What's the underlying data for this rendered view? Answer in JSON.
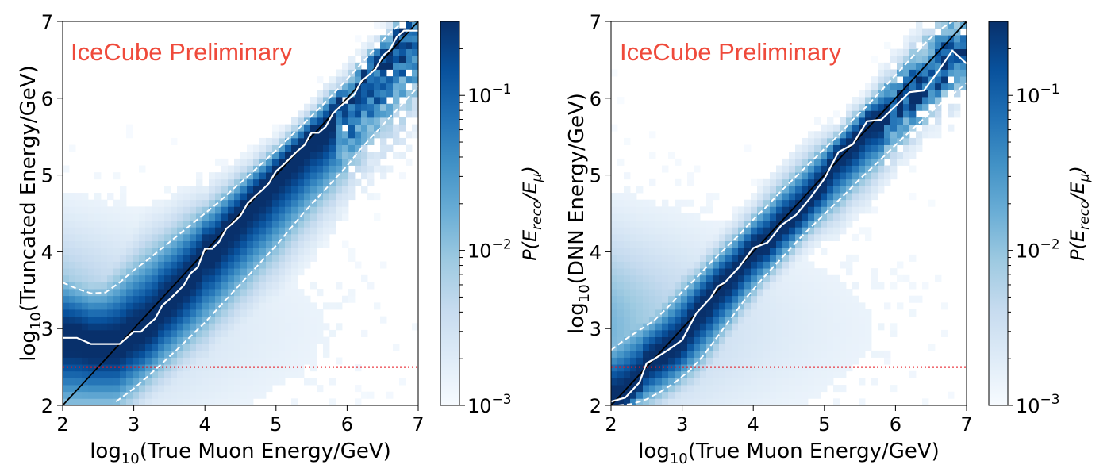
{
  "chart_data": [
    {
      "type": "heatmap",
      "title": "",
      "watermark": "IceCube Preliminary",
      "xlabel": "log10(True Muon Energy/GeV)",
      "ylabel": "log10(Truncated Energy/GeV)",
      "xlabel_parts": {
        "pre": "log",
        "sub": "10",
        "post": "(True Muon Energy/GeV)"
      },
      "ylabel_parts": {
        "pre": "log",
        "sub": "10",
        "post": "(Truncated Energy/GeV)"
      },
      "xlim": [
        2,
        7
      ],
      "ylim": [
        2,
        7
      ],
      "xticks": [
        "2",
        "3",
        "4",
        "5",
        "6",
        "7"
      ],
      "yticks": [
        "2",
        "3",
        "4",
        "5",
        "6",
        "7"
      ],
      "colorbar": {
        "label": "P(E_reco/E_mu)",
        "scale": "log",
        "range": [
          0.001,
          0.3
        ],
        "ticks": [
          {
            "base": "10",
            "exp": "−3",
            "value": 0.001
          },
          {
            "base": "10",
            "exp": "−2",
            "value": 0.01
          },
          {
            "base": "10",
            "exp": "−1",
            "value": 0.1
          }
        ],
        "colormap": "Blues"
      },
      "reference_lines": [
        {
          "name": "diagonal y=x",
          "color": "#000000",
          "points": [
            [
              2,
              2
            ],
            [
              7,
              7
            ]
          ]
        },
        {
          "name": "threshold",
          "style": "dotted",
          "color": "#e8141e",
          "y": 2.5
        }
      ],
      "median": {
        "x": [
          2.0,
          2.2,
          2.4,
          2.6,
          2.8,
          3.0,
          3.1,
          3.2,
          3.3,
          3.4,
          3.5,
          3.6,
          3.7,
          3.8,
          3.9,
          4.0,
          4.1,
          4.2,
          4.3,
          4.4,
          4.5,
          4.6,
          4.7,
          4.8,
          4.9,
          5.0,
          5.1,
          5.2,
          5.3,
          5.4,
          5.5,
          5.6,
          5.7,
          5.8,
          5.9,
          6.0,
          6.1,
          6.2,
          6.3,
          6.4,
          6.5,
          6.6,
          6.7,
          6.8,
          7.0
        ],
        "y": [
          2.88,
          2.88,
          2.8,
          2.8,
          2.8,
          2.96,
          2.96,
          3.05,
          3.13,
          3.3,
          3.38,
          3.47,
          3.56,
          3.72,
          3.8,
          4.04,
          4.04,
          4.13,
          4.3,
          4.38,
          4.47,
          4.63,
          4.72,
          4.8,
          4.89,
          5.05,
          5.13,
          5.22,
          5.31,
          5.39,
          5.55,
          5.55,
          5.63,
          5.8,
          5.89,
          5.97,
          6.05,
          6.22,
          6.3,
          6.38,
          6.55,
          6.63,
          6.8,
          6.88,
          6.88
        ]
      },
      "upper_band": {
        "x": [
          2.0,
          2.2,
          2.4,
          2.6,
          2.8,
          3.0,
          3.2,
          3.4,
          3.6,
          3.8,
          4.0,
          4.2,
          4.4,
          4.6,
          4.8,
          5.0,
          5.2,
          5.4,
          5.6,
          5.8,
          6.0,
          6.2,
          6.4,
          6.6,
          6.8,
          7.0
        ],
        "y": [
          3.6,
          3.52,
          3.46,
          3.47,
          3.6,
          3.76,
          3.9,
          4.05,
          4.2,
          4.35,
          4.5,
          4.65,
          4.82,
          4.98,
          5.15,
          5.32,
          5.5,
          5.68,
          5.86,
          6.05,
          6.25,
          6.45,
          6.65,
          6.85,
          7.0,
          7.0
        ]
      },
      "lower_band": {
        "x": [
          2.75,
          2.9,
          3.0,
          3.2,
          3.4,
          3.6,
          3.8,
          4.0,
          4.2,
          4.4,
          4.6,
          4.8,
          5.0,
          5.2,
          5.4,
          5.6,
          5.8,
          6.0,
          6.2,
          6.4,
          6.6,
          6.8,
          7.0
        ],
        "y": [
          2.05,
          2.15,
          2.22,
          2.38,
          2.55,
          2.72,
          2.9,
          3.08,
          3.28,
          3.48,
          3.68,
          3.88,
          4.08,
          4.3,
          4.52,
          4.72,
          4.92,
          5.12,
          5.35,
          5.55,
          5.75,
          5.95,
          6.15
        ]
      }
    },
    {
      "type": "heatmap",
      "title": "",
      "watermark": "IceCube Preliminary",
      "xlabel": "log10(True Muon Energy/GeV)",
      "ylabel": "log10(DNN Energy/GeV)",
      "xlabel_parts": {
        "pre": "log",
        "sub": "10",
        "post": "(True Muon Energy/GeV)"
      },
      "ylabel_parts": {
        "pre": "log",
        "sub": "10",
        "post": "(DNN Energy/GeV)"
      },
      "xlim": [
        2,
        7
      ],
      "ylim": [
        2,
        7
      ],
      "xticks": [
        "2",
        "3",
        "4",
        "5",
        "6",
        "7"
      ],
      "yticks": [
        "2",
        "3",
        "4",
        "5",
        "6",
        "7"
      ],
      "colorbar": {
        "label": "P(E_reco/E_mu)",
        "scale": "log",
        "range": [
          0.001,
          0.3
        ],
        "ticks": [
          {
            "base": "10",
            "exp": "−3",
            "value": 0.001
          },
          {
            "base": "10",
            "exp": "−2",
            "value": 0.01
          },
          {
            "base": "10",
            "exp": "−1",
            "value": 0.1
          }
        ],
        "colormap": "Blues"
      },
      "reference_lines": [
        {
          "name": "diagonal y=x",
          "color": "#000000",
          "points": [
            [
              2,
              2
            ],
            [
              7,
              7
            ]
          ]
        },
        {
          "name": "threshold",
          "style": "dotted",
          "color": "#e8141e",
          "y": 2.5
        }
      ],
      "median": {
        "x": [
          2.0,
          2.2,
          2.4,
          2.5,
          2.6,
          2.8,
          3.0,
          3.2,
          3.4,
          3.5,
          3.6,
          3.8,
          4.0,
          4.2,
          4.4,
          4.6,
          4.8,
          5.0,
          5.2,
          5.4,
          5.6,
          5.8,
          6.0,
          6.2,
          6.4,
          6.6,
          6.8,
          7.0
        ],
        "y": [
          2.05,
          2.1,
          2.3,
          2.55,
          2.6,
          2.72,
          2.85,
          3.2,
          3.4,
          3.55,
          3.6,
          3.8,
          4.05,
          4.12,
          4.35,
          4.48,
          4.7,
          4.95,
          5.3,
          5.4,
          5.7,
          5.72,
          5.9,
          6.08,
          6.1,
          6.35,
          6.62,
          6.45
        ]
      },
      "upper_band": {
        "x": [
          2.0,
          2.2,
          2.4,
          2.6,
          2.8,
          3.0,
          3.2,
          3.4,
          3.6,
          3.8,
          4.0,
          4.2,
          4.4,
          4.6,
          4.8,
          5.0,
          5.2,
          5.4,
          5.6,
          5.8,
          6.0,
          6.2,
          6.4,
          6.6,
          6.8,
          7.0
        ],
        "y": [
          2.72,
          2.86,
          2.98,
          3.1,
          3.28,
          3.48,
          3.66,
          3.86,
          4.04,
          4.22,
          4.42,
          4.6,
          4.8,
          4.98,
          5.16,
          5.34,
          5.52,
          5.72,
          5.9,
          6.1,
          6.3,
          6.5,
          6.7,
          6.88,
          7.0,
          7.0
        ]
      },
      "lower_band": {
        "x": [
          2.1,
          2.3,
          2.5,
          2.7,
          2.9,
          3.1,
          3.3,
          3.5,
          3.7,
          3.9,
          4.1,
          4.3,
          4.5,
          4.7,
          4.9,
          5.1,
          5.3,
          5.5,
          5.7,
          5.9,
          6.1,
          6.3,
          6.5,
          6.7,
          6.9,
          7.0
        ],
        "y": [
          2.0,
          2.02,
          2.08,
          2.18,
          2.3,
          2.45,
          2.65,
          2.9,
          3.15,
          3.4,
          3.62,
          3.82,
          4.02,
          4.22,
          4.4,
          4.58,
          4.76,
          4.95,
          5.12,
          5.3,
          5.48,
          5.65,
          5.82,
          5.98,
          6.12,
          6.2
        ]
      }
    }
  ]
}
